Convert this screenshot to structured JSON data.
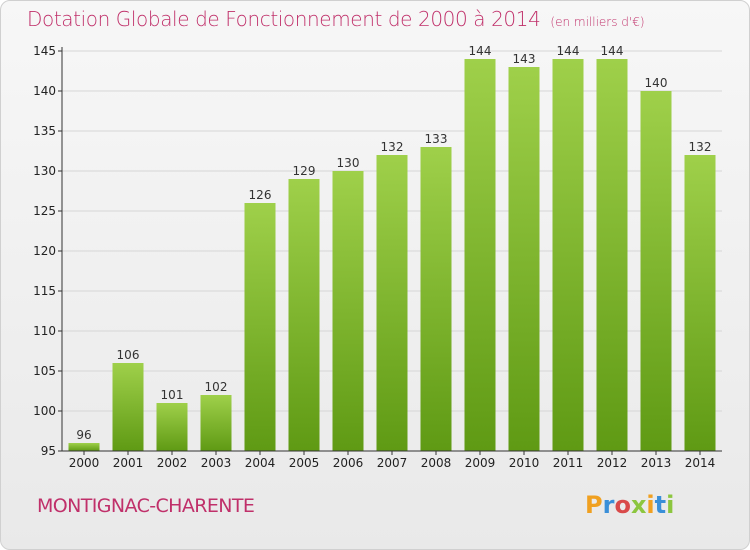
{
  "header": {
    "title": "Dotation Globale de Fonctionnement de 2000 à 2014",
    "unit": "(en milliers d'€)"
  },
  "footer": {
    "commune": "MONTIGNAC-CHARENTE",
    "logo_letters": [
      "P",
      "r",
      "o",
      "x",
      "i",
      "t",
      "i"
    ],
    "logo_colors": [
      "#f0a020",
      "#3a8fd8",
      "#d94a4a",
      "#8cc63f",
      "#f0a020",
      "#3a8fd8",
      "#8cc63f"
    ]
  },
  "colors": {
    "title": "#c0306a",
    "bar_top": "#9fd04a",
    "bar_bottom": "#5f9a14",
    "axis": "#333333",
    "grid": "#d6d6d6"
  },
  "chart_data": {
    "type": "bar",
    "title": "Dotation Globale de Fonctionnement de 2000 à 2014",
    "ylabel": "(en milliers d'€)",
    "xlabel": "",
    "categories": [
      "2000",
      "2001",
      "2002",
      "2003",
      "2004",
      "2005",
      "2006",
      "2007",
      "2008",
      "2009",
      "2010",
      "2011",
      "2012",
      "2013",
      "2014"
    ],
    "values": [
      96,
      106,
      101,
      102,
      126,
      129,
      130,
      132,
      133,
      144,
      143,
      144,
      144,
      140,
      132
    ],
    "ylim": [
      95,
      145
    ],
    "yticks": [
      95,
      100,
      105,
      110,
      115,
      120,
      125,
      130,
      135,
      140,
      145
    ],
    "grid": true,
    "legend": "none"
  }
}
